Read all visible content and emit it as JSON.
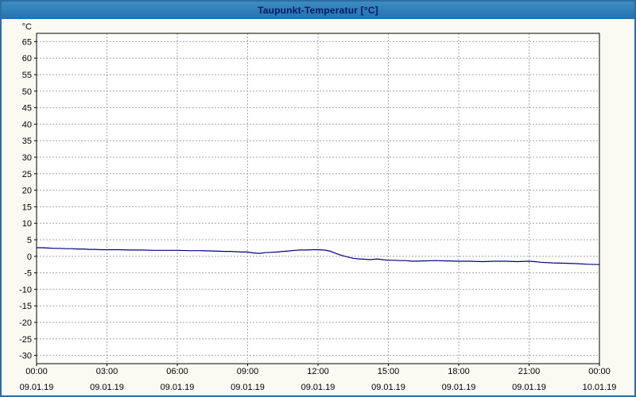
{
  "window": {
    "title": "Taupunkt-Temperatur [°C]"
  },
  "colors": {
    "title_bar": "#2d7ab5",
    "title_text": "#001a66",
    "window_border": "#2d6da3",
    "page_background": "#fbfaf2",
    "plot_background": "#ffffff",
    "grid": "#a6a6a6",
    "axis": "#000000",
    "line": "#000080"
  },
  "chart_data": {
    "type": "line",
    "title": "Taupunkt-Temperatur [°C]",
    "xlabel": "",
    "ylabel": "°C",
    "ylim": [
      -32.5,
      67.5
    ],
    "xlim": [
      0,
      24
    ],
    "grid": "dashed",
    "grid_color": "#a6a6a6",
    "line_color": "#000080",
    "legend": "none",
    "yticks": [
      -30,
      -25,
      -20,
      -15,
      -10,
      -5,
      0,
      5,
      10,
      15,
      20,
      25,
      30,
      35,
      40,
      45,
      50,
      55,
      60,
      65
    ],
    "xticks": [
      {
        "h": 0,
        "time": "00:00",
        "date": "09.01.19"
      },
      {
        "h": 3,
        "time": "03:00",
        "date": "09.01.19"
      },
      {
        "h": 6,
        "time": "06:00",
        "date": "09.01.19"
      },
      {
        "h": 9,
        "time": "09:00",
        "date": "09.01.19"
      },
      {
        "h": 12,
        "time": "12:00",
        "date": "09.01.19"
      },
      {
        "h": 15,
        "time": "15:00",
        "date": "09.01.19"
      },
      {
        "h": 18,
        "time": "18:00",
        "date": "09.01.19"
      },
      {
        "h": 21,
        "time": "21:00",
        "date": "09.01.19"
      },
      {
        "h": 24,
        "time": "00:00",
        "date": "10.01.19"
      }
    ],
    "series": [
      {
        "name": "Taupunkt-Temperatur",
        "x": [
          0,
          0.25,
          0.5,
          0.75,
          1,
          1.25,
          1.5,
          1.75,
          2,
          2.25,
          2.5,
          2.75,
          3,
          3.5,
          4,
          4.5,
          5,
          5.5,
          6,
          6.5,
          7,
          7.5,
          8,
          8.25,
          8.5,
          8.75,
          9,
          9.25,
          9.5,
          9.75,
          10,
          10.25,
          10.5,
          10.75,
          11,
          11.25,
          11.5,
          11.75,
          12,
          12.25,
          12.5,
          12.75,
          13,
          13.25,
          13.5,
          13.75,
          14,
          14.25,
          14.5,
          14.75,
          15,
          15.25,
          15.5,
          15.75,
          16,
          16.5,
          17,
          17.5,
          18,
          18.5,
          19,
          19.5,
          20,
          20.5,
          21,
          21.25,
          21.5,
          22,
          22.5,
          23,
          23.5,
          24
        ],
        "y": [
          2.6,
          2.6,
          2.5,
          2.4,
          2.4,
          2.3,
          2.3,
          2.2,
          2.2,
          2.1,
          2.1,
          2.0,
          2.0,
          2.0,
          1.9,
          1.9,
          1.8,
          1.8,
          1.8,
          1.7,
          1.7,
          1.6,
          1.5,
          1.5,
          1.4,
          1.3,
          1.3,
          1.0,
          0.9,
          1.1,
          1.2,
          1.3,
          1.5,
          1.6,
          1.8,
          1.9,
          1.9,
          2.0,
          2.0,
          1.9,
          1.6,
          0.9,
          0.3,
          -0.2,
          -0.6,
          -0.8,
          -0.9,
          -1.0,
          -0.8,
          -1.0,
          -1.2,
          -1.2,
          -1.3,
          -1.3,
          -1.5,
          -1.4,
          -1.3,
          -1.4,
          -1.5,
          -1.5,
          -1.6,
          -1.5,
          -1.5,
          -1.6,
          -1.5,
          -1.6,
          -1.8,
          -2.0,
          -2.1,
          -2.2,
          -2.4,
          -2.5
        ]
      }
    ]
  }
}
